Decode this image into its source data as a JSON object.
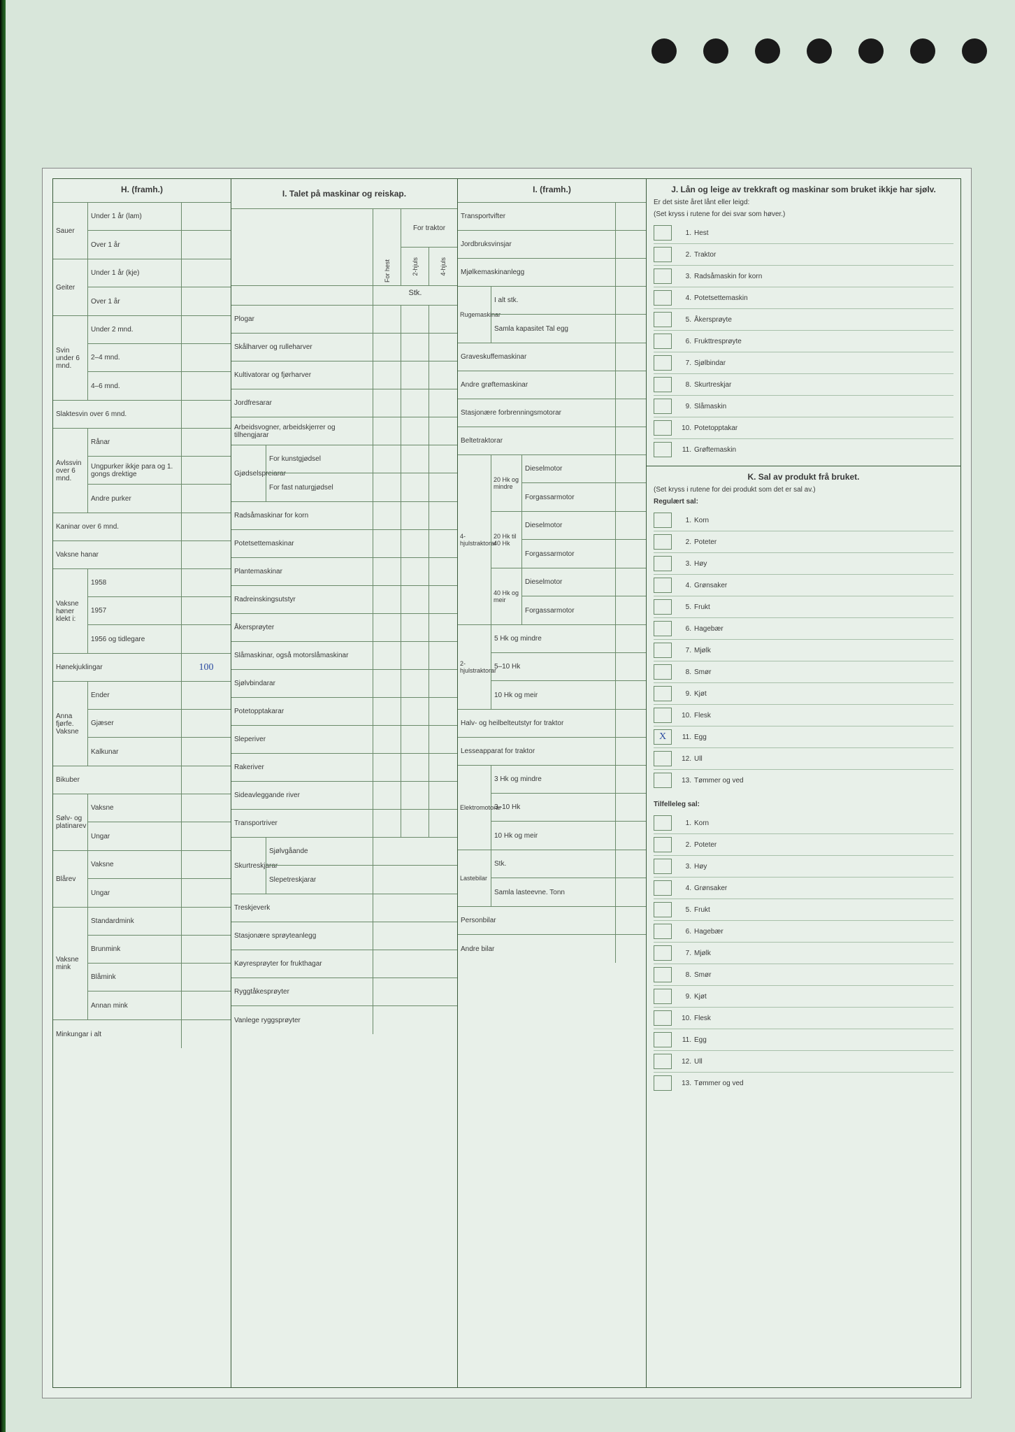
{
  "colors": {
    "page_bg": "#e8f0e9",
    "outer_bg": "#d8e6da",
    "border": "#3a5a3a",
    "light_border": "#6a8a6a",
    "text": "#3a3a3a",
    "handwriting": "#2a4aa0"
  },
  "sections": {
    "H": {
      "title": "H. (framh.)",
      "rows": [
        {
          "group": "Sauer",
          "sub": "Under 1 år (lam)",
          "val": ""
        },
        {
          "group": "",
          "sub": "Over 1 år",
          "val": ""
        },
        {
          "group": "Geiter",
          "sub": "Under 1 år (kje)",
          "val": ""
        },
        {
          "group": "",
          "sub": "Over 1 år",
          "val": ""
        },
        {
          "group": "Svin under 6 mnd.",
          "sub": "Under 2 mnd.",
          "val": ""
        },
        {
          "group": "",
          "sub": "2–4 mnd.",
          "val": ""
        },
        {
          "group": "",
          "sub": "4–6 mnd.",
          "val": ""
        },
        {
          "group": "",
          "sub": "Slaktesvin over 6 mnd.",
          "val": "",
          "span": true
        },
        {
          "group": "Avlssvin over 6 mnd.",
          "sub": "Rånar",
          "val": ""
        },
        {
          "group": "",
          "sub": "Ungpurker ikkje para og 1. gongs drektige",
          "val": ""
        },
        {
          "group": "",
          "sub": "Andre purker",
          "val": ""
        },
        {
          "group": "",
          "sub": "Kaninar over 6 mnd.",
          "val": "",
          "span": true
        },
        {
          "group": "",
          "sub": "Vaksne hanar",
          "val": "",
          "span": true
        },
        {
          "group": "Vaksne høner klekt i:",
          "sub": "1958",
          "val": ""
        },
        {
          "group": "",
          "sub": "1957",
          "val": ""
        },
        {
          "group": "",
          "sub": "1956 og tidlegare",
          "val": ""
        },
        {
          "group": "",
          "sub": "Hønekjuklingar",
          "val": "100",
          "span": true
        },
        {
          "group": "Anna fjørfe. Vaksne",
          "sub": "Ender",
          "val": ""
        },
        {
          "group": "",
          "sub": "Gjæser",
          "val": ""
        },
        {
          "group": "",
          "sub": "Kalkunar",
          "val": ""
        },
        {
          "group": "",
          "sub": "Bikuber",
          "val": "",
          "span": true
        },
        {
          "group": "Sølv- og platinarev",
          "sub": "Vaksne",
          "val": ""
        },
        {
          "group": "",
          "sub": "Ungar",
          "val": ""
        },
        {
          "group": "Blårev",
          "sub": "Vaksne",
          "val": ""
        },
        {
          "group": "",
          "sub": "Ungar",
          "val": ""
        },
        {
          "group": "Vaksne mink",
          "sub": "Standardmink",
          "val": ""
        },
        {
          "group": "",
          "sub": "Brunmink",
          "val": ""
        },
        {
          "group": "",
          "sub": "Blåmink",
          "val": ""
        },
        {
          "group": "",
          "sub": "Annan mink",
          "val": ""
        },
        {
          "group": "",
          "sub": "Minkungar i alt",
          "val": "",
          "span": true
        }
      ]
    },
    "I": {
      "title": "I. Talet på maskinar og reiskap.",
      "col_headers": {
        "a": "For hest",
        "b": "2-hjuls",
        "c": "4-hjuls",
        "traktor": "For traktor",
        "stk": "Stk."
      },
      "rows": [
        "Plogar",
        "Skålharver og rulleharver",
        "Kultivatorar og fjørharver",
        "Jordfresarar",
        "Arbeidsvogner, arbeidskjerrer og tilhengjarar"
      ],
      "gjod_group": "Gjødselspreiarar",
      "gjod_rows": [
        "For kunstgjødsel",
        "For fast naturgjødsel"
      ],
      "rows2": [
        "Radsåmaskinar for korn",
        "Potetsettemaskinar",
        "Plantemaskinar",
        "Radreinskingsutstyr",
        "Åkersprøyter",
        "Slåmaskinar, også motorslåmaskinar",
        "Sjølvbindarar",
        "Potetopptakarar",
        "Sleperiver",
        "Rakeriver",
        "Sideavleggande river",
        "Transportriver"
      ],
      "skur_group": "Skurtreskjarar",
      "skur_rows": [
        "Sjølvgåande",
        "Slepetreskjarar"
      ],
      "rows3": [
        "Treskjeverk",
        "Stasjonære sprøyteanlegg",
        "Køyresprøyter for frukthagar",
        "Ryggtåkesprøyter",
        "Vanlege ryggsprøyter"
      ]
    },
    "Ic": {
      "title": "I. (framh.)",
      "rows_top": [
        "Transportvifter",
        "Jordbruksvinsjar",
        "Mjølkemaskinanlegg"
      ],
      "ruge_group": "Rugemaskinar",
      "ruge_rows": [
        "I alt stk.",
        "Samla kapasitet Tal egg"
      ],
      "rows_mid": [
        "Graveskuffemaskinar",
        "Andre grøftemaskinar",
        "Stasjonære forbrenningsmotorar",
        "Beltetraktorar"
      ],
      "trak4_group": "4-hjulstraktorar",
      "trak4_subs": [
        {
          "hk": "20 Hk og mindre",
          "a": "Dieselmotor",
          "b": "Forgassarmotor"
        },
        {
          "hk": "20 Hk til 40 Hk",
          "a": "Dieselmotor",
          "b": "Forgassarmotor"
        },
        {
          "hk": "40 Hk og meir",
          "a": "Dieselmotor",
          "b": "Forgassarmotor"
        }
      ],
      "trak2_group": "2-hjulstraktorar",
      "trak2_rows": [
        "5 Hk og mindre",
        "5–10 Hk",
        "10 Hk og meir"
      ],
      "rows_bot": [
        "Halv- og heilbelteutstyr for traktor",
        "Lesseapparat for traktor"
      ],
      "elek_group": "Elektromotorar",
      "elek_rows": [
        "3 Hk og mindre",
        "3–10 Hk",
        "10 Hk og meir"
      ],
      "last_group": "Lastebilar",
      "last_rows": [
        "Stk.",
        "Samla lasteevne. Tonn"
      ],
      "rows_end": [
        "Personbilar",
        "Andre bilar"
      ]
    },
    "J": {
      "title": "J. Lån og leige av trekkraft og maskinar som bruket ikkje har sjølv.",
      "sub": "Er det siste året lånt eller leigd:",
      "hint": "(Set kryss i rutene for dei svar som høver.)",
      "items": [
        {
          "n": "1.",
          "label": "Hest",
          "x": ""
        },
        {
          "n": "2.",
          "label": "Traktor",
          "x": ""
        },
        {
          "n": "3.",
          "label": "Radsåmaskin for korn",
          "x": ""
        },
        {
          "n": "4.",
          "label": "Potetsettemaskin",
          "x": ""
        },
        {
          "n": "5.",
          "label": "Åkersprøyte",
          "x": ""
        },
        {
          "n": "6.",
          "label": "Frukttresprøyte",
          "x": ""
        },
        {
          "n": "7.",
          "label": "Sjølbindar",
          "x": ""
        },
        {
          "n": "8.",
          "label": "Skurtreskjar",
          "x": ""
        },
        {
          "n": "9.",
          "label": "Slåmaskin",
          "x": ""
        },
        {
          "n": "10.",
          "label": "Potetopptakar",
          "x": ""
        },
        {
          "n": "11.",
          "label": "Grøftemaskin",
          "x": ""
        }
      ]
    },
    "K": {
      "title": "K. Sal av produkt frå bruket.",
      "hint": "(Set kryss i rutene for dei produkt som det er sal av.)",
      "reg_title": "Regulært sal:",
      "reg_items": [
        {
          "n": "1.",
          "label": "Korn",
          "x": ""
        },
        {
          "n": "2.",
          "label": "Poteter",
          "x": ""
        },
        {
          "n": "3.",
          "label": "Høy",
          "x": ""
        },
        {
          "n": "4.",
          "label": "Grønsaker",
          "x": ""
        },
        {
          "n": "5.",
          "label": "Frukt",
          "x": ""
        },
        {
          "n": "6.",
          "label": "Hagebær",
          "x": ""
        },
        {
          "n": "7.",
          "label": "Mjølk",
          "x": ""
        },
        {
          "n": "8.",
          "label": "Smør",
          "x": ""
        },
        {
          "n": "9.",
          "label": "Kjøt",
          "x": ""
        },
        {
          "n": "10.",
          "label": "Flesk",
          "x": ""
        },
        {
          "n": "11.",
          "label": "Egg",
          "x": "X"
        },
        {
          "n": "12.",
          "label": "Ull",
          "x": ""
        },
        {
          "n": "13.",
          "label": "Tømmer og ved",
          "x": ""
        }
      ],
      "til_title": "Tilfelleleg sal:",
      "til_items": [
        {
          "n": "1.",
          "label": "Korn",
          "x": ""
        },
        {
          "n": "2.",
          "label": "Poteter",
          "x": ""
        },
        {
          "n": "3.",
          "label": "Høy",
          "x": ""
        },
        {
          "n": "4.",
          "label": "Grønsaker",
          "x": ""
        },
        {
          "n": "5.",
          "label": "Frukt",
          "x": ""
        },
        {
          "n": "6.",
          "label": "Hagebær",
          "x": ""
        },
        {
          "n": "7.",
          "label": "Mjølk",
          "x": ""
        },
        {
          "n": "8.",
          "label": "Smør",
          "x": ""
        },
        {
          "n": "9.",
          "label": "Kjøt",
          "x": ""
        },
        {
          "n": "10.",
          "label": "Flesk",
          "x": ""
        },
        {
          "n": "11.",
          "label": "Egg",
          "x": ""
        },
        {
          "n": "12.",
          "label": "Ull",
          "x": ""
        },
        {
          "n": "13.",
          "label": "Tømmer og ved",
          "x": ""
        }
      ]
    }
  }
}
